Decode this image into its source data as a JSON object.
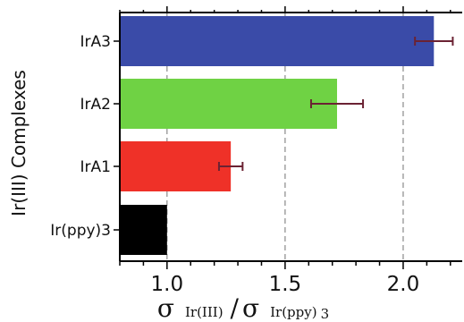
{
  "chart_data": {
    "type": "bar",
    "orientation": "horizontal",
    "categories": [
      "IrA3",
      "IrA2",
      "IrA1",
      "Ir(ppy)3"
    ],
    "values": [
      2.13,
      1.72,
      1.27,
      1.0
    ],
    "error": [
      0.08,
      0.11,
      0.05,
      0.0
    ],
    "colors": [
      "#3a4ba8",
      "#6fd244",
      "#ef3128",
      "#000000"
    ],
    "error_color": "#6b2233",
    "xlim": [
      0.8,
      2.25
    ],
    "xticks": [
      "1.0",
      "1.5",
      "2.0"
    ],
    "ylabel": "Ir(III) Complexes",
    "xlabel": {
      "sym1": "σ",
      "sub1": "Ir(III)",
      "slash": "/",
      "sym2": "σ",
      "sub2": "Ir(ppy)",
      "sub2_suffix": "3"
    },
    "grid": "vertical dashed at major ticks"
  }
}
